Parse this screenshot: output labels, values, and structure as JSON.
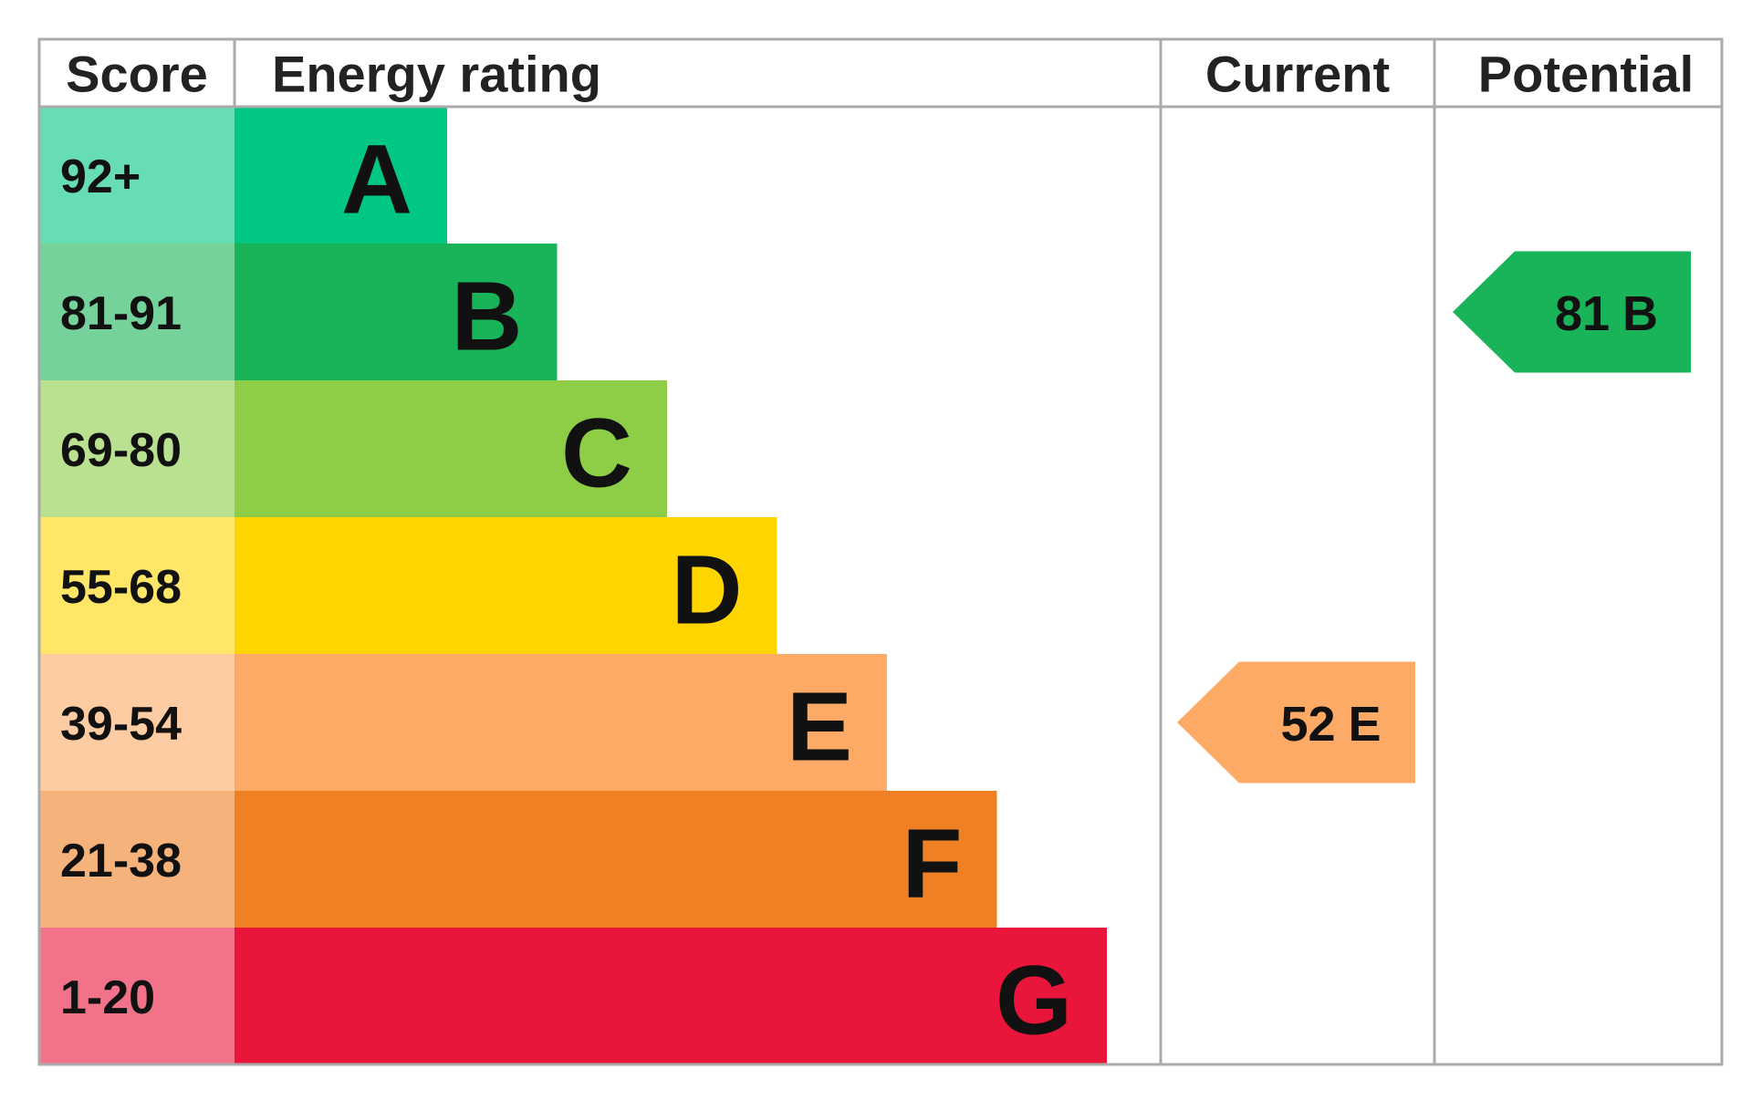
{
  "header": {
    "score": "Score",
    "rating": "Energy rating",
    "current": "Current",
    "potential": "Potential"
  },
  "bands": [
    {
      "score": "92+",
      "letter": "A",
      "color": "#00c781"
    },
    {
      "score": "81-91",
      "letter": "B",
      "color": "#19b459"
    },
    {
      "score": "69-80",
      "letter": "C",
      "color": "#8dce46"
    },
    {
      "score": "55-68",
      "letter": "D",
      "color": "#ffd500"
    },
    {
      "score": "39-54",
      "letter": "E",
      "color": "#fcaa65"
    },
    {
      "score": "21-38",
      "letter": "F",
      "color": "#ef8023"
    },
    {
      "score": "1-20",
      "letter": "G",
      "color": "#e9153b"
    }
  ],
  "current": {
    "score": 52,
    "rating": "E"
  },
  "potential": {
    "score": 81,
    "rating": "B"
  }
}
